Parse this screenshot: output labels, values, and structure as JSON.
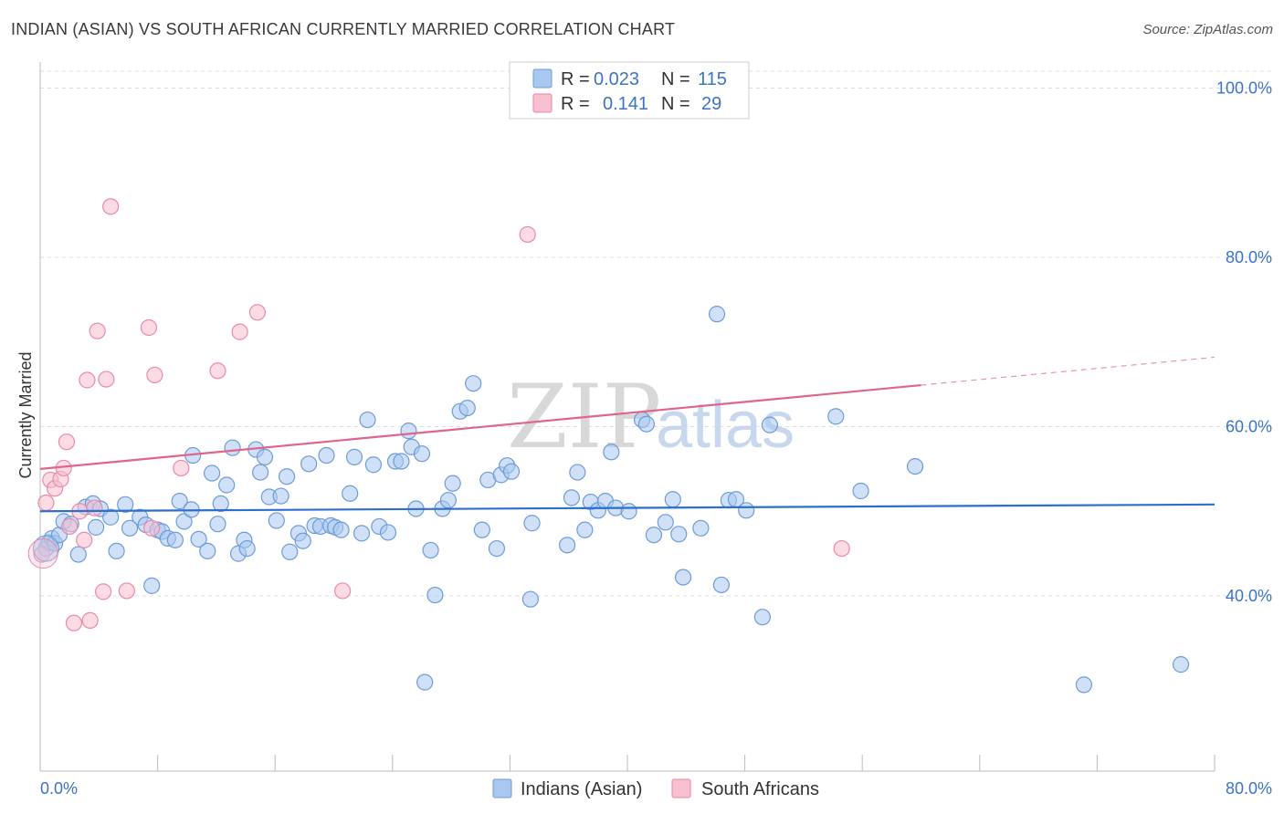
{
  "header": {
    "title": "INDIAN (ASIAN) VS SOUTH AFRICAN CURRENTLY MARRIED CORRELATION CHART",
    "source": "Source: ZipAtlas.com"
  },
  "watermark": {
    "zip": "ZIP",
    "atlas": "atlas"
  },
  "colors": {
    "blue_fill": "#a9c8f0",
    "blue_stroke": "#6e9bd8",
    "blue_line": "#2d6fcc",
    "pink_fill": "#f7bfd0",
    "pink_stroke": "#e98aa8",
    "pink_line": "#e0648c",
    "axis_label": "#3a73c8",
    "grid": "#dddddd"
  },
  "legend": {
    "rows": [
      {
        "r_label": "R =",
        "r_value": "0.023",
        "n_label": "N =",
        "n_value": "115"
      },
      {
        "r_label": "R =",
        "r_value": "0.141",
        "n_label": "N =",
        "n_value": "29"
      }
    ]
  },
  "chart_data": {
    "type": "scatter",
    "title": "INDIAN (ASIAN) VS SOUTH AFRICAN CURRENTLY MARRIED CORRELATION CHART",
    "xlabel": "",
    "ylabel": "Currently Married",
    "xlim": [
      0,
      80
    ],
    "ylim": [
      20,
      100
    ],
    "x_tick_labels": [
      "0.0%",
      "80.0%"
    ],
    "y_ticks": [
      40,
      60,
      80,
      100
    ],
    "y_tick_labels": [
      "40.0%",
      "60.0%",
      "80.0%",
      "100.0%"
    ],
    "grid": "horizontal dashed",
    "legend_placement": "top-center",
    "series": [
      {
        "name": "Indians (Asian)",
        "color": "#a9c8f0",
        "trend": {
          "x": [
            0,
            80
          ],
          "y": [
            50.0,
            50.8
          ]
        },
        "points": [
          [
            0.4,
            45.6
          ],
          [
            0.6,
            46.3
          ],
          [
            0.8,
            46.8
          ],
          [
            1.0,
            46.2
          ],
          [
            1.3,
            47.2
          ],
          [
            1.6,
            48.8
          ],
          [
            2.1,
            48.5
          ],
          [
            2.6,
            44.9
          ],
          [
            3.1,
            50.5
          ],
          [
            3.6,
            50.9
          ],
          [
            3.8,
            48.1
          ],
          [
            4.1,
            50.3
          ],
          [
            4.8,
            49.3
          ],
          [
            5.2,
            45.3
          ],
          [
            5.8,
            50.8
          ],
          [
            6.1,
            48.0
          ],
          [
            6.8,
            49.3
          ],
          [
            7.2,
            48.4
          ],
          [
            7.6,
            41.2
          ],
          [
            8.0,
            47.8
          ],
          [
            8.3,
            47.6
          ],
          [
            8.7,
            46.8
          ],
          [
            9.2,
            46.6
          ],
          [
            9.5,
            51.2
          ],
          [
            9.8,
            48.8
          ],
          [
            10.3,
            50.2
          ],
          [
            10.4,
            56.6
          ],
          [
            10.8,
            46.7
          ],
          [
            11.4,
            45.3
          ],
          [
            11.7,
            54.5
          ],
          [
            12.1,
            48.5
          ],
          [
            12.3,
            50.9
          ],
          [
            12.7,
            53.1
          ],
          [
            13.1,
            57.5
          ],
          [
            13.5,
            45.0
          ],
          [
            13.9,
            46.6
          ],
          [
            14.1,
            45.6
          ],
          [
            14.7,
            57.3
          ],
          [
            15.0,
            54.6
          ],
          [
            15.3,
            56.4
          ],
          [
            15.6,
            51.7
          ],
          [
            16.1,
            48.9
          ],
          [
            16.4,
            51.8
          ],
          [
            16.8,
            54.1
          ],
          [
            17.0,
            45.2
          ],
          [
            17.6,
            47.4
          ],
          [
            17.9,
            46.5
          ],
          [
            18.3,
            55.6
          ],
          [
            18.7,
            48.3
          ],
          [
            19.1,
            48.2
          ],
          [
            19.5,
            56.6
          ],
          [
            19.8,
            48.3
          ],
          [
            20.1,
            48.1
          ],
          [
            20.5,
            47.8
          ],
          [
            21.1,
            52.1
          ],
          [
            21.4,
            56.4
          ],
          [
            21.9,
            47.4
          ],
          [
            22.3,
            60.8
          ],
          [
            22.7,
            55.5
          ],
          [
            23.1,
            48.2
          ],
          [
            23.7,
            47.5
          ],
          [
            24.2,
            55.9
          ],
          [
            24.6,
            55.9
          ],
          [
            25.1,
            59.5
          ],
          [
            25.3,
            57.6
          ],
          [
            25.6,
            50.3
          ],
          [
            26.0,
            56.8
          ],
          [
            26.6,
            45.4
          ],
          [
            26.9,
            40.1
          ],
          [
            27.4,
            50.3
          ],
          [
            27.8,
            51.3
          ],
          [
            28.1,
            53.3
          ],
          [
            28.6,
            61.8
          ],
          [
            29.1,
            62.2
          ],
          [
            29.5,
            65.1
          ],
          [
            30.1,
            47.8
          ],
          [
            30.5,
            53.7
          ],
          [
            31.1,
            45.6
          ],
          [
            31.4,
            54.3
          ],
          [
            31.8,
            55.4
          ],
          [
            32.1,
            54.7
          ],
          [
            33.4,
            39.6
          ],
          [
            33.5,
            48.6
          ],
          [
            35.9,
            46.0
          ],
          [
            36.2,
            51.6
          ],
          [
            36.6,
            54.6
          ],
          [
            37.1,
            47.8
          ],
          [
            37.5,
            51.1
          ],
          [
            38.0,
            50.1
          ],
          [
            38.5,
            51.2
          ],
          [
            38.9,
            57.0
          ],
          [
            39.2,
            50.4
          ],
          [
            40.1,
            50.0
          ],
          [
            41.0,
            60.8
          ],
          [
            41.3,
            60.3
          ],
          [
            41.8,
            47.2
          ],
          [
            42.6,
            48.7
          ],
          [
            43.1,
            51.4
          ],
          [
            43.5,
            47.3
          ],
          [
            43.8,
            42.2
          ],
          [
            45.0,
            48.0
          ],
          [
            46.1,
            73.3
          ],
          [
            46.4,
            41.3
          ],
          [
            46.9,
            51.3
          ],
          [
            47.4,
            51.4
          ],
          [
            48.1,
            50.1
          ],
          [
            49.2,
            37.5
          ],
          [
            49.7,
            60.2
          ],
          [
            54.2,
            61.2
          ],
          [
            55.9,
            52.4
          ],
          [
            59.6,
            55.3
          ],
          [
            26.2,
            29.8
          ],
          [
            71.1,
            29.5
          ],
          [
            77.7,
            31.9
          ]
        ]
      },
      {
        "name": "South Africans",
        "color": "#f7bfd0",
        "trend": {
          "x": [
            0,
            60
          ],
          "y": [
            55.0,
            64.9
          ]
        },
        "trend_dashed_extension": {
          "x": [
            60,
            80
          ],
          "y": [
            64.9,
            68.2
          ]
        },
        "points": [
          [
            0.1,
            44.9
          ],
          [
            0.4,
            51.0
          ],
          [
            0.7,
            53.7
          ],
          [
            1.0,
            52.7
          ],
          [
            1.4,
            53.8
          ],
          [
            1.6,
            55.1
          ],
          [
            1.8,
            58.2
          ],
          [
            2.0,
            48.2
          ],
          [
            2.3,
            36.8
          ],
          [
            2.7,
            50.0
          ],
          [
            3.0,
            46.6
          ],
          [
            3.2,
            65.5
          ],
          [
            3.4,
            37.1
          ],
          [
            3.7,
            50.4
          ],
          [
            3.9,
            71.3
          ],
          [
            4.3,
            40.5
          ],
          [
            4.5,
            65.6
          ],
          [
            4.8,
            86.0
          ],
          [
            5.9,
            40.6
          ],
          [
            7.4,
            71.7
          ],
          [
            7.6,
            48.0
          ],
          [
            7.8,
            66.1
          ],
          [
            9.6,
            55.1
          ],
          [
            12.1,
            66.6
          ],
          [
            13.6,
            71.2
          ],
          [
            14.8,
            73.5
          ],
          [
            20.6,
            40.6
          ],
          [
            33.2,
            82.7
          ],
          [
            54.6,
            45.6
          ]
        ]
      }
    ]
  },
  "bottom_legend": {
    "items": [
      {
        "label": "Indians (Asian)"
      },
      {
        "label": "South Africans"
      }
    ]
  }
}
